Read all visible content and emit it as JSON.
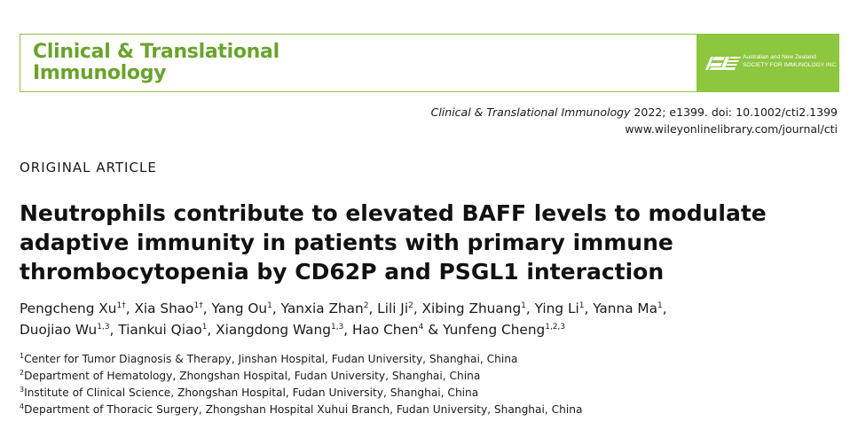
{
  "journal": {
    "name_line1": "Clinical & Translational",
    "name_line2": "Immunology",
    "society_line1": "Australian and New Zealand",
    "society_line2": "SOCIETY FOR IMMUNOLOGY INC.",
    "brand_color": "#8dc63f"
  },
  "citation": {
    "journal_italic": "Clinical & Translational Immunology",
    "rest": " 2022; e1399. doi: 10.1002/cti2.1399",
    "url": "www.wileyonlinelibrary.com/journal/cti"
  },
  "section_label": "ORIGINAL ARTICLE",
  "title_lines": [
    "Neutrophils contribute to elevated BAFF levels to modulate",
    "adaptive immunity in patients with primary immune",
    "thrombocytopenia by CD62P and PSGL1 interaction"
  ],
  "authors": [
    {
      "name": "Pengcheng Xu",
      "sup": "1†",
      "sep": ", "
    },
    {
      "name": "Xia Shao",
      "sup": "1†",
      "sep": ", "
    },
    {
      "name": "Yang Ou",
      "sup": "1",
      "sep": ", "
    },
    {
      "name": "Yanxia Zhan",
      "sup": "2",
      "sep": ", "
    },
    {
      "name": "Lili Ji",
      "sup": "2",
      "sep": ", "
    },
    {
      "name": "Xibing Zhuang",
      "sup": "1",
      "sep": ", "
    },
    {
      "name": "Ying Li",
      "sup": "1",
      "sep": ", "
    },
    {
      "name": "Yanna Ma",
      "sup": "1",
      "sep": ","
    },
    {
      "name": "Duojiao Wu",
      "sup": "1,3",
      "sep": ", "
    },
    {
      "name": "Tiankui Qiao",
      "sup": "1",
      "sep": ", "
    },
    {
      "name": "Xiangdong Wang",
      "sup": "1,3",
      "sep": ", "
    },
    {
      "name": "Hao Chen",
      "sup": "4",
      "sep": " & "
    },
    {
      "name": "Yunfeng Cheng",
      "sup": "1,2,3",
      "sep": ""
    }
  ],
  "affiliations": [
    {
      "num": "1",
      "text": "Center for Tumor Diagnosis & Therapy, Jinshan Hospital, Fudan University, Shanghai, China"
    },
    {
      "num": "2",
      "text": "Department of Hematology, Zhongshan Hospital, Fudan University, Shanghai, China"
    },
    {
      "num": "3",
      "text": "Institute of Clinical Science, Zhongshan Hospital, Fudan University, Shanghai, China"
    },
    {
      "num": "4",
      "text": "Department of Thoracic Surgery, Zhongshan Hospital Xuhui Branch, Fudan University, Shanghai, China"
    }
  ]
}
